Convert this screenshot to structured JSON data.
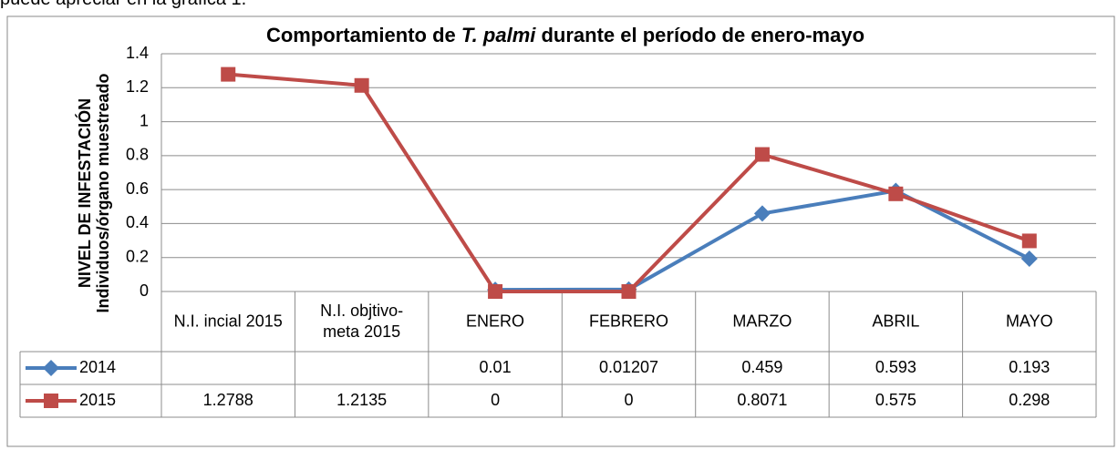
{
  "intro_text": "puede apreciar en la gráfica 1.",
  "chart_data": {
    "type": "line",
    "title_parts": [
      "Comportamiento de ",
      "T. palmi",
      " durante el período de enero-mayo"
    ],
    "y_label": [
      "NIVEL DE INFESTACIÓN",
      "Individuos/órgano muestreado"
    ],
    "categories": [
      "N.I. incial 2015",
      "N.I. objtivo-meta 2015",
      "ENERO",
      "FEBRERO",
      "MARZO",
      "ABRIL",
      "MAYO"
    ],
    "series": [
      {
        "name": "2014",
        "color": "#4a7ebb",
        "marker": "diamond",
        "values": [
          null,
          null,
          0.01,
          0.01207,
          0.459,
          0.593,
          0.193
        ]
      },
      {
        "name": "2015",
        "color": "#be4b48",
        "marker": "square",
        "values": [
          1.2788,
          1.2135,
          0,
          0,
          0.8071,
          0.575,
          0.298
        ]
      }
    ],
    "ylim": [
      0,
      1.4
    ],
    "yticks": [
      0,
      0.2,
      0.4,
      0.6,
      0.8,
      1,
      1.2,
      1.4
    ],
    "grid": true,
    "data_table": true
  }
}
